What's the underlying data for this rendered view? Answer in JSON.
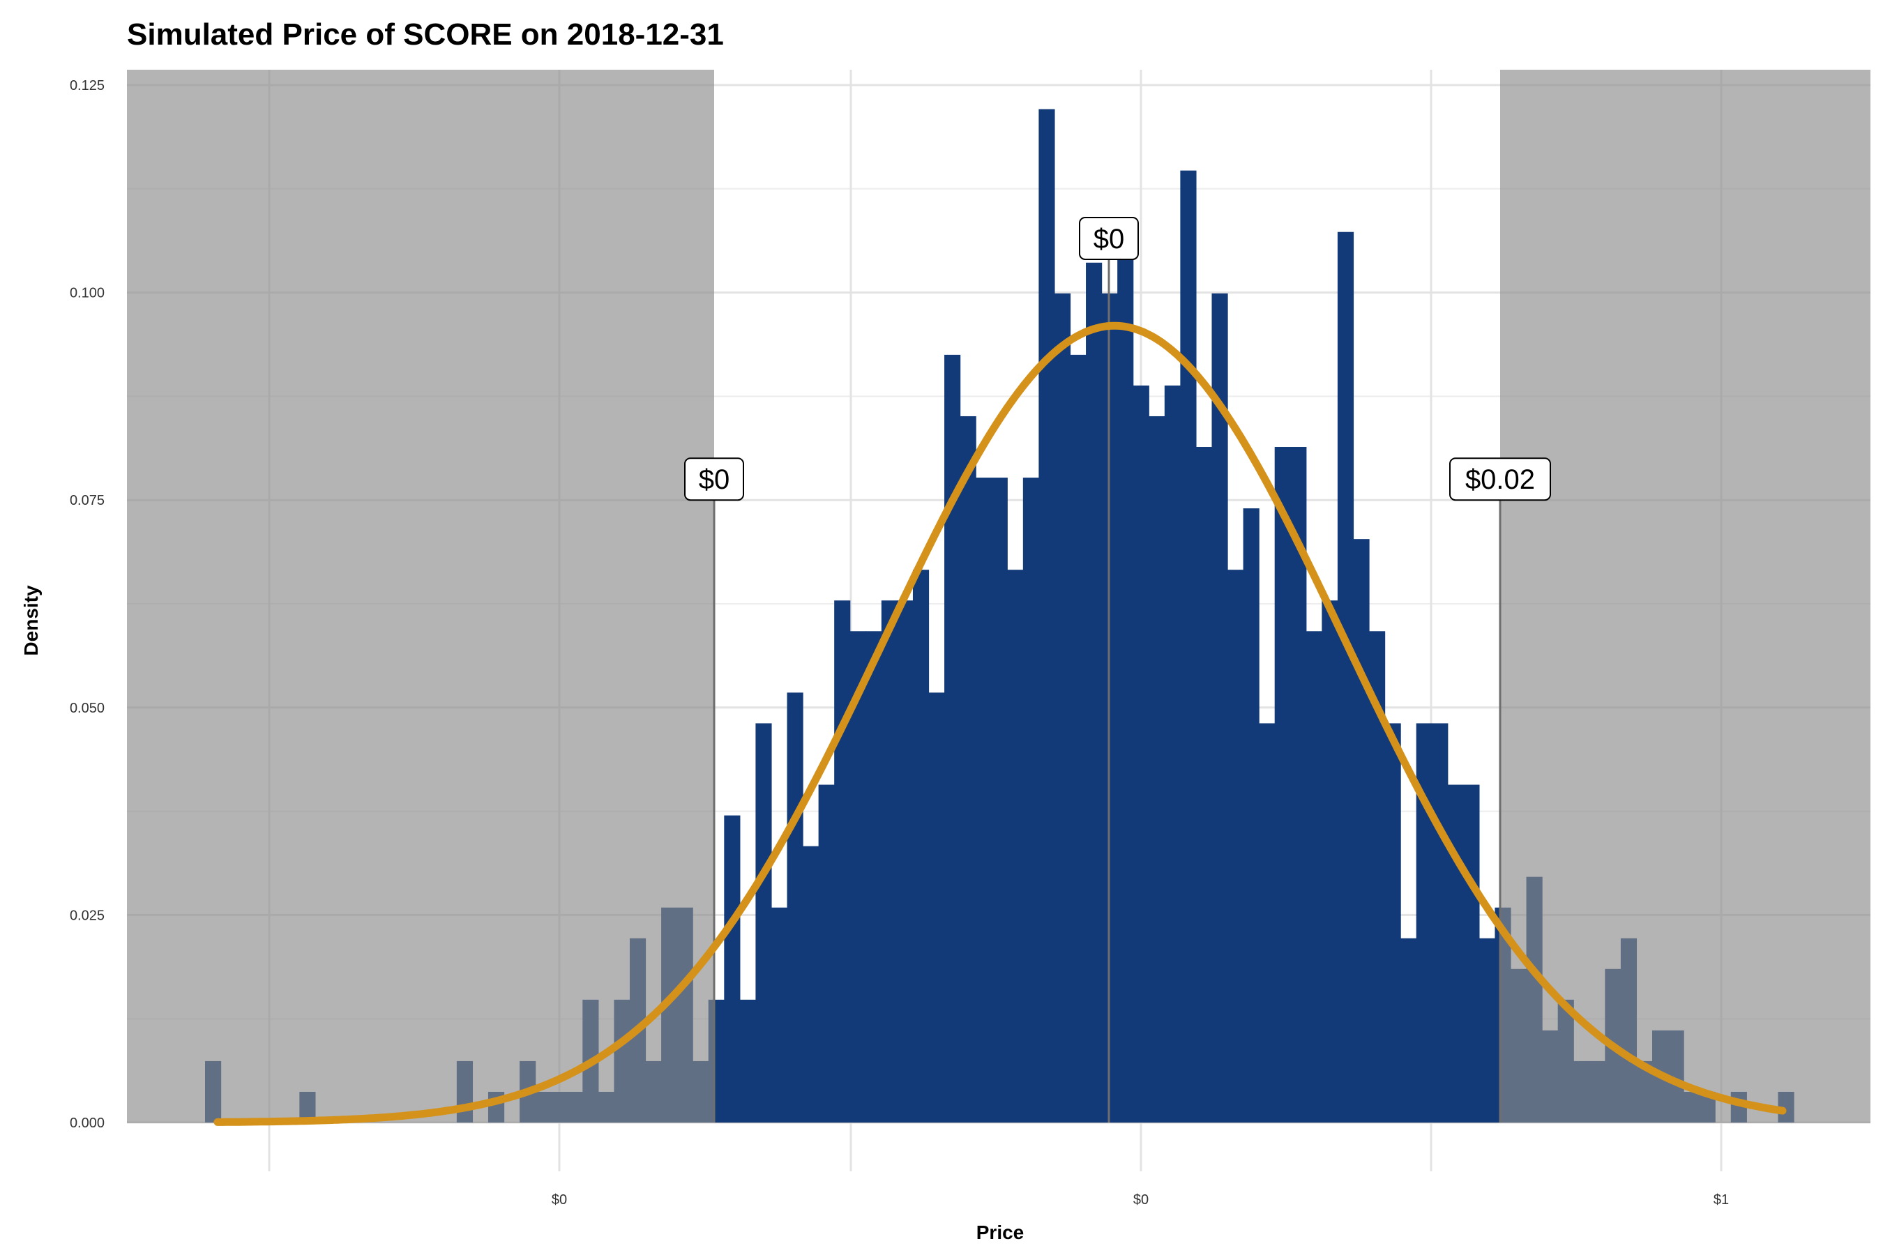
{
  "chart_data": {
    "type": "bar",
    "title": "Simulated Price of SCORE on 2018-12-31",
    "xlabel": "Price",
    "ylabel": "Density",
    "ylim": [
      0,
      0.125
    ],
    "y_ticks": [
      {
        "value": 0.0,
        "label": "0.000"
      },
      {
        "value": 0.025,
        "label": "0.025"
      },
      {
        "value": 0.05,
        "label": "0.050"
      },
      {
        "value": 0.075,
        "label": "0.075"
      },
      {
        "value": 0.1,
        "label": "0.100"
      },
      {
        "value": 0.125,
        "label": "0.125"
      }
    ],
    "x_tick_labels": [
      "$0",
      "$0",
      "$1"
    ],
    "grid": true,
    "series": [
      {
        "type": "histogram",
        "color": "#123a78",
        "values": [
          0.0074,
          0,
          0,
          0,
          0,
          0,
          0.0037,
          0,
          0,
          0,
          0,
          0,
          0,
          0,
          0,
          0,
          0.0074,
          0,
          0.0037,
          0,
          0.0074,
          0.0037,
          0.0037,
          0.0037,
          0.0148,
          0.0037,
          0.0148,
          0.0222,
          0.0074,
          0.0259,
          0.0259,
          0.0074,
          0.0148,
          0.037,
          0.0148,
          0.0481,
          0.0259,
          0.0518,
          0.0333,
          0.0407,
          0.0629,
          0.0592,
          0.0592,
          0.0629,
          0.0629,
          0.0666,
          0.0518,
          0.0925,
          0.0851,
          0.0777,
          0.0777,
          0.0666,
          0.0777,
          0.1221,
          0.0999,
          0.0925,
          0.1036,
          0.0999,
          0.1073,
          0.0888,
          0.0851,
          0.0888,
          0.1147,
          0.0814,
          0.0999,
          0.0666,
          0.074,
          0.0481,
          0.0814,
          0.0814,
          0.0592,
          0.0629,
          0.1073,
          0.0703,
          0.0592,
          0.0481,
          0.0222,
          0.0481,
          0.0481,
          0.0407,
          0.0407,
          0.0222,
          0.0259,
          0.0185,
          0.0296,
          0.0111,
          0.0148,
          0.0074,
          0.0074,
          0.0185,
          0.0222,
          0.0074,
          0.0111,
          0.0111,
          0.0037,
          0.0037,
          0,
          0.0037,
          0,
          0,
          0.0037
        ]
      },
      {
        "type": "density-curve",
        "color": "#d4921a",
        "peak": 0.096
      }
    ],
    "annotations": [
      {
        "label": "$0",
        "value": 0.075
      },
      {
        "label": "$0",
        "value": 0.104
      },
      {
        "label": "$0.02",
        "value": 0.075
      }
    ],
    "shaded_tails": {
      "color": "#8c8c8c"
    }
  }
}
